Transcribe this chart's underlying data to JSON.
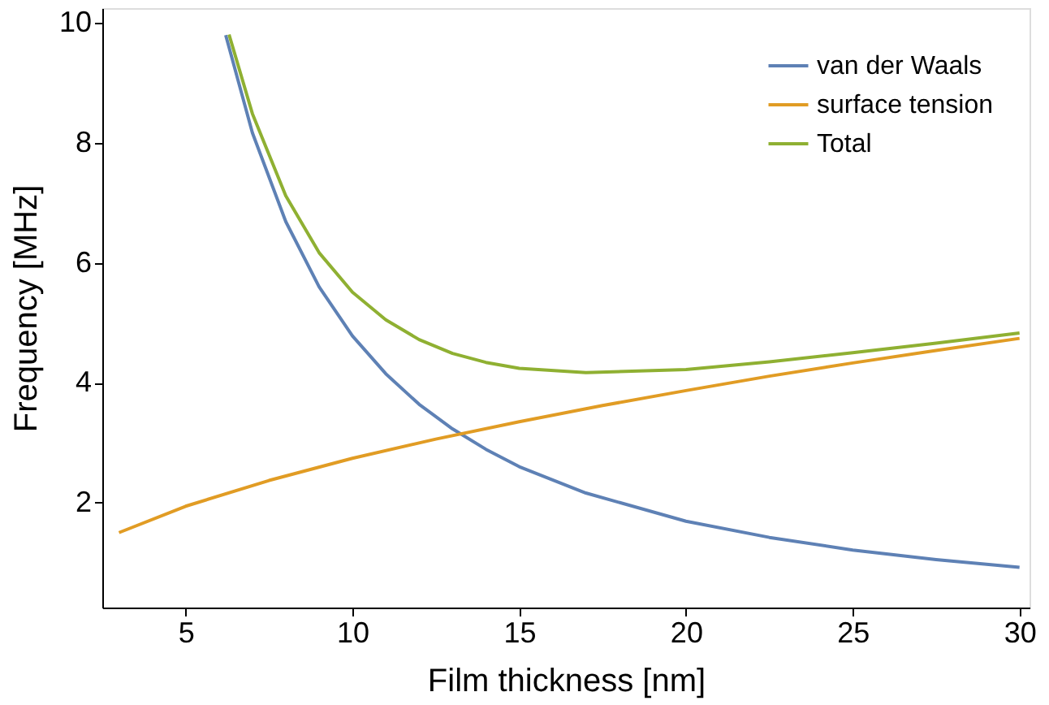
{
  "chart_data": {
    "type": "line",
    "xlabel": "Film thickness [nm]",
    "ylabel": "Frequency [MHz]",
    "xlim": [
      2.5,
      30.3
    ],
    "ylim": [
      0.25,
      10.25
    ],
    "xticks": [
      5,
      10,
      15,
      20,
      25,
      30
    ],
    "yticks": [
      2,
      4,
      6,
      8,
      10
    ],
    "grid": false,
    "legend": "top right",
    "marker": "none",
    "line_style": "solid",
    "series": [
      {
        "name": "van der Waals",
        "color": "#5e81b5",
        "x": [
          6.2,
          7,
          8,
          9,
          10,
          11,
          12,
          13,
          14,
          15,
          17,
          20,
          22.5,
          25,
          27.5,
          30
        ],
        "values": [
          9.8,
          8.17,
          6.69,
          5.6,
          4.78,
          4.15,
          3.64,
          3.23,
          2.89,
          2.6,
          2.16,
          1.69,
          1.42,
          1.21,
          1.05,
          0.92
        ]
      },
      {
        "name": "surface tension",
        "color": "#e19c24",
        "x": [
          3,
          5,
          7.5,
          10,
          12.5,
          15,
          17.5,
          20,
          22.5,
          25,
          27.5,
          30
        ],
        "values": [
          1.5,
          1.94,
          2.37,
          2.74,
          3.06,
          3.35,
          3.62,
          3.87,
          4.11,
          4.33,
          4.54,
          4.74
        ]
      },
      {
        "name": "Total",
        "color": "#8fb032",
        "x": [
          6.3,
          7,
          8,
          9,
          10,
          11,
          12,
          13,
          14,
          15,
          17,
          20,
          22.5,
          25,
          27.5,
          30
        ],
        "values": [
          9.81,
          8.49,
          7.12,
          6.17,
          5.51,
          5.05,
          4.72,
          4.49,
          4.34,
          4.24,
          4.17,
          4.22,
          4.35,
          4.5,
          4.66,
          4.83
        ]
      }
    ]
  }
}
